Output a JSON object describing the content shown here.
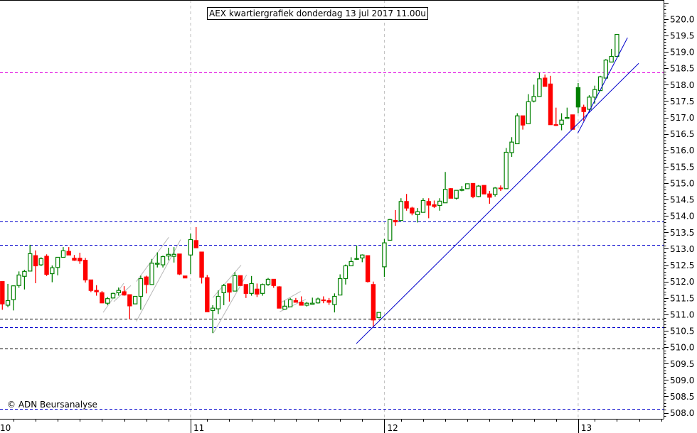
{
  "title": "AEX kwartiergrafiek donderdag 13 jul 2017 11.00u",
  "copyright": "© ADN Beursanalyse",
  "chart_data": {
    "type": "candlestick",
    "title": "AEX kwartiergrafiek donderdag 13 jul 2017 11.00u",
    "xlabel": "",
    "ylabel": "",
    "ylim": [
      507.84,
      520.58
    ],
    "y_axis_position": "right",
    "y_ticks": [
      "508.0",
      "508.5",
      "509.0",
      "509.5",
      "510.0",
      "510.5",
      "511.0",
      "511.5",
      "512.0",
      "512.5",
      "513.0",
      "513.5",
      "514.0",
      "514.5",
      "515.0",
      "515.5",
      "516.0",
      "516.5",
      "517.0",
      "517.5",
      "518.0",
      "518.5",
      "519.0",
      "519.5",
      "520.0"
    ],
    "x_day_labels": [
      {
        "label": "10",
        "start_index": 0
      },
      {
        "label": "11",
        "start_index": 35
      },
      {
        "label": "12",
        "start_index": 70
      },
      {
        "label": "13",
        "start_index": 105
      }
    ],
    "candle_format": [
      "open",
      "high",
      "low",
      "close"
    ],
    "first_index": 1,
    "filled_green_index": 105,
    "candles": [
      [
        512.0,
        512.0,
        511.14,
        511.32
      ],
      [
        511.28,
        511.93,
        511.22,
        511.42
      ],
      [
        511.45,
        511.88,
        511.12,
        511.87
      ],
      [
        511.88,
        512.31,
        511.81,
        512.2
      ],
      [
        512.16,
        512.36,
        511.76,
        512.31
      ],
      [
        512.32,
        513.12,
        512.32,
        512.85
      ],
      [
        512.79,
        512.95,
        511.95,
        512.48
      ],
      [
        512.51,
        512.74,
        512.47,
        512.7
      ],
      [
        512.77,
        512.83,
        512.17,
        512.22
      ],
      [
        512.24,
        512.49,
        511.98,
        512.42
      ],
      [
        512.43,
        512.74,
        512.19,
        512.74
      ],
      [
        512.74,
        513.05,
        512.74,
        512.94
      ],
      [
        512.92,
        513.05,
        512.81,
        512.81
      ],
      [
        512.71,
        512.81,
        512.63,
        512.65
      ],
      [
        512.71,
        512.88,
        512.54,
        512.63
      ],
      [
        512.65,
        512.72,
        511.97,
        512.05
      ],
      [
        512.05,
        512.05,
        511.68,
        511.73
      ],
      [
        511.73,
        511.89,
        511.57,
        511.69
      ],
      [
        511.66,
        511.71,
        511.34,
        511.35
      ],
      [
        511.34,
        511.53,
        511.28,
        511.48
      ],
      [
        511.5,
        511.66,
        511.5,
        511.64
      ],
      [
        511.66,
        511.82,
        511.57,
        511.73
      ],
      [
        511.69,
        511.86,
        511.57,
        511.59
      ],
      [
        511.6,
        511.6,
        510.86,
        511.26
      ],
      [
        511.32,
        511.55,
        511.32,
        511.55
      ],
      [
        511.55,
        512.18,
        511.14,
        512.09
      ],
      [
        512.14,
        512.18,
        511.64,
        511.91
      ],
      [
        511.91,
        512.69,
        511.91,
        512.56
      ],
      [
        512.53,
        512.89,
        512.43,
        512.56
      ],
      [
        512.51,
        512.79,
        512.43,
        512.76
      ],
      [
        512.78,
        513.03,
        512.65,
        512.83
      ],
      [
        512.77,
        513.05,
        512.58,
        512.83
      ],
      [
        512.84,
        512.84,
        512.2,
        512.23
      ],
      [
        512.17,
        512.17,
        512.11,
        512.11
      ],
      [
        512.81,
        513.46,
        512.23,
        513.28
      ],
      [
        513.25,
        513.66,
        513.03,
        513.03
      ],
      [
        512.9,
        512.9,
        511.94,
        512.13
      ],
      [
        512.12,
        512.2,
        511.08,
        511.08
      ],
      [
        511.12,
        511.28,
        510.43,
        511.19
      ],
      [
        511.17,
        511.73,
        511.01,
        511.55
      ],
      [
        511.66,
        511.93,
        511.28,
        511.88
      ],
      [
        511.93,
        511.93,
        511.39,
        511.68
      ],
      [
        511.71,
        512.29,
        511.71,
        512.18
      ],
      [
        512.18,
        512.18,
        511.88,
        511.88
      ],
      [
        511.91,
        511.91,
        511.5,
        511.64
      ],
      [
        511.64,
        512.17,
        511.57,
        511.94
      ],
      [
        511.77,
        511.94,
        511.53,
        511.62
      ],
      [
        511.64,
        511.94,
        511.57,
        511.91
      ],
      [
        511.91,
        512.11,
        511.87,
        512.07
      ],
      [
        512.07,
        512.07,
        511.81,
        511.88
      ],
      [
        511.84,
        511.86,
        511.19,
        511.19
      ],
      [
        511.16,
        511.42,
        511.16,
        511.25
      ],
      [
        511.23,
        511.5,
        511.23,
        511.45
      ],
      [
        511.42,
        511.5,
        511.37,
        511.37
      ],
      [
        511.37,
        511.55,
        511.28,
        511.28
      ],
      [
        511.28,
        511.38,
        511.24,
        511.34
      ],
      [
        511.31,
        511.51,
        511.31,
        511.34
      ],
      [
        511.35,
        511.51,
        511.33,
        511.47
      ],
      [
        511.44,
        511.55,
        511.34,
        511.43
      ],
      [
        511.42,
        511.5,
        511.29,
        511.37
      ],
      [
        511.3,
        511.64,
        511.06,
        511.55
      ],
      [
        511.59,
        512.22,
        511.59,
        512.09
      ],
      [
        512.09,
        512.52,
        511.91,
        512.48
      ],
      [
        512.48,
        512.74,
        512.48,
        512.61
      ],
      [
        512.68,
        513.1,
        512.66,
        512.7
      ],
      [
        512.72,
        512.83,
        512.59,
        512.81
      ],
      [
        512.79,
        512.79,
        511.97,
        512.0
      ],
      [
        511.91,
        512.0,
        510.61,
        510.83
      ],
      [
        510.9,
        511.06,
        510.9,
        511.06
      ],
      [
        512.45,
        513.3,
        512.14,
        513.18
      ],
      [
        513.26,
        513.91,
        513.26,
        513.89
      ],
      [
        513.86,
        514.18,
        513.7,
        513.82
      ],
      [
        513.86,
        514.54,
        513.86,
        514.44
      ],
      [
        514.44,
        514.67,
        514.16,
        514.24
      ],
      [
        514.24,
        514.28,
        514.02,
        514.09
      ],
      [
        514.04,
        514.24,
        513.8,
        514.13
      ],
      [
        514.11,
        514.54,
        514.11,
        514.47
      ],
      [
        514.44,
        514.54,
        513.93,
        514.33
      ],
      [
        514.34,
        514.47,
        514.24,
        514.29
      ],
      [
        514.32,
        514.54,
        514.16,
        514.45
      ],
      [
        514.4,
        515.34,
        514.4,
        514.81
      ],
      [
        514.83,
        514.85,
        514.54,
        514.54
      ],
      [
        514.54,
        514.78,
        514.5,
        514.78
      ],
      [
        514.78,
        514.91,
        514.75,
        514.81
      ],
      [
        514.83,
        514.99,
        514.83,
        514.98
      ],
      [
        514.99,
        514.99,
        514.54,
        514.59
      ],
      [
        514.59,
        514.94,
        514.57,
        514.91
      ],
      [
        514.93,
        514.93,
        514.67,
        514.67
      ],
      [
        514.67,
        514.76,
        514.37,
        514.57
      ],
      [
        514.65,
        514.88,
        514.59,
        514.85
      ],
      [
        514.85,
        514.93,
        514.76,
        514.84
      ],
      [
        514.83,
        516.07,
        514.83,
        515.94
      ],
      [
        515.93,
        516.4,
        515.8,
        516.25
      ],
      [
        516.2,
        517.13,
        516.2,
        517.05
      ],
      [
        517.05,
        517.05,
        516.63,
        516.77
      ],
      [
        516.81,
        517.71,
        516.81,
        517.48
      ],
      [
        517.5,
        518.0,
        517.46,
        517.64
      ],
      [
        517.64,
        518.37,
        517.64,
        518.18
      ],
      [
        518.2,
        518.31,
        517.95,
        517.95
      ],
      [
        518.02,
        518.27,
        516.78,
        516.78
      ],
      [
        516.78,
        517.3,
        516.74,
        516.76
      ],
      [
        516.79,
        517.13,
        516.61,
        516.92
      ],
      [
        516.97,
        517.3,
        516.97,
        517.0
      ],
      [
        517.08,
        517.08,
        516.64,
        516.64
      ],
      [
        517.91,
        518.05,
        517.13,
        517.32
      ],
      [
        517.31,
        517.39,
        516.9,
        517.18
      ],
      [
        517.25,
        517.68,
        517.18,
        517.62
      ],
      [
        517.62,
        517.97,
        517.42,
        517.85
      ],
      [
        517.82,
        518.27,
        517.82,
        518.24
      ],
      [
        518.2,
        518.78,
        518.2,
        518.75
      ],
      [
        518.69,
        519.09,
        518.69,
        518.86
      ],
      [
        518.86,
        519.53,
        518.86,
        519.53
      ]
    ],
    "horizontal_lines": [
      {
        "price": 518.37,
        "color": "#e000e0"
      },
      {
        "price": 513.83,
        "color": "#0000cc"
      },
      {
        "price": 513.12,
        "color": "#0000cc"
      },
      {
        "price": 510.86,
        "color": "#000000"
      },
      {
        "price": 510.6,
        "color": "#0000cc"
      },
      {
        "price": 509.97,
        "color": "#000000"
      },
      {
        "price": 508.12,
        "color": "#0000cc"
      }
    ],
    "trend_lines": [
      {
        "from": [
          64.93,
          510.11
        ],
        "to": [
          115.93,
          518.65
        ],
        "color": "#0000cc"
      },
      {
        "from": [
          104.92,
          516.52
        ],
        "to": [
          113.91,
          519.43
        ],
        "color": "#0000cc"
      },
      {
        "from": [
          19.2,
          511.06
        ],
        "to": [
          22.93,
          511.95
        ],
        "color": "#b8b8b8"
      },
      {
        "from": [
          21.13,
          511.39
        ],
        "to": [
          24.21,
          511.88
        ],
        "color": "#b8b8b8"
      },
      {
        "from": [
          25.2,
          512.0
        ],
        "to": [
          31.06,
          513.35
        ],
        "color": "#b8b8b8"
      },
      {
        "from": [
          25.2,
          510.79
        ],
        "to": [
          33.2,
          513.28
        ],
        "color": "#b8b8b8"
      },
      {
        "from": [
          39.02,
          511.51
        ],
        "to": [
          44.12,
          512.5
        ],
        "color": "#b8b8b8"
      },
      {
        "from": [
          39.11,
          510.43
        ],
        "to": [
          45.11,
          512.2
        ],
        "color": "#b8b8b8"
      },
      {
        "from": [
          51.1,
          511.34
        ],
        "to": [
          54.87,
          511.7
        ],
        "color": "#b8b8b8"
      },
      {
        "from": [
          51.1,
          511.08
        ],
        "to": [
          55.81,
          511.46
        ],
        "color": "#b8b8b8"
      }
    ],
    "colors": {
      "up": "#008000",
      "down": "#ff0000",
      "grid": "#c0c0c0",
      "axis": "#000000"
    },
    "grid": {
      "vertical_day_lines": true,
      "horizontal": false
    }
  }
}
